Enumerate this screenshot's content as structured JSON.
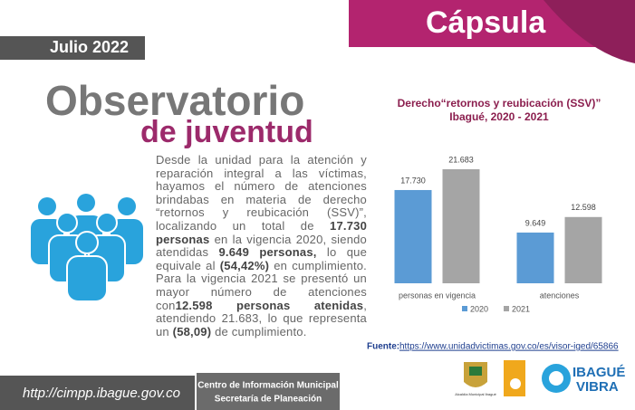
{
  "header": {
    "capsule": "Cápsula",
    "date": "Julio 2022",
    "title1": "Observatorio",
    "title2": "de juventud"
  },
  "paragraph": [
    "Desde la unidad para la atención y reparación integral a las víctimas, hayamos el número de atenciones brindabas en materia de derecho “retornos y reubicación (SSV)”, localizando un total de ",
    "17.730 personas",
    " en la vigencia 2020, siendo atendidas ",
    "9.649 personas,",
    " lo que equivale al ",
    "(54,42%)",
    " en cumplimiento. Para la vigencia 2021 se presentó un mayor número de atenciones con",
    "12.598 personas atenidas",
    ", atendiendo 21.683, lo que representa un ",
    "(58,09)",
    " de cumplimiento."
  ],
  "chart_data": {
    "type": "bar",
    "title": "Derecho“retornos y reubicación (SSV)”",
    "subtitle": "Ibagué, 2020 - 2021",
    "categories": [
      "personas en vigencia",
      "atenciones"
    ],
    "series": [
      {
        "name": "2020",
        "color": "#5b9bd5",
        "values": [
          17730,
          9649
        ],
        "value_labels": [
          "17.730",
          "9.649"
        ]
      },
      {
        "name": "2021",
        "color": "#a5a5a5",
        "values": [
          21683,
          12598
        ],
        "value_labels": [
          "21.683",
          "12.598"
        ]
      }
    ]
  },
  "source": {
    "label": "Fuente:",
    "url": "https://www.unidadvictimas.gov.co/es/visor-iged/65866"
  },
  "footer": {
    "url": "http://cimpp.ibague.gov.co",
    "line1": "Centro de Información Municipal",
    "line2": "Secretaría de Planeación",
    "logo1": "Alcaldía Municipal Ibagué",
    "logo3a": "IBAGUÉ",
    "logo3b": "VIBRA"
  }
}
